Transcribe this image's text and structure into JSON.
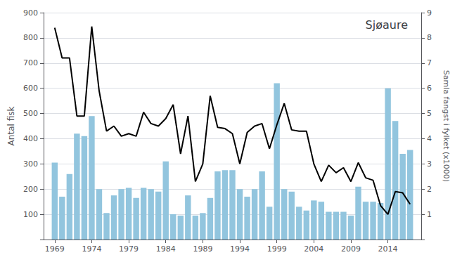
{
  "chart_data": {
    "type": "bar",
    "title": "Sjøaure",
    "ylabel": "Antal fisk",
    "y2label": "Samla fangst i fylket (x1000)",
    "x": [
      1969,
      1970,
      1971,
      1972,
      1973,
      1974,
      1975,
      1976,
      1977,
      1978,
      1979,
      1980,
      1981,
      1982,
      1983,
      1984,
      1985,
      1986,
      1987,
      1988,
      1989,
      1990,
      1991,
      1992,
      1993,
      1994,
      1995,
      1996,
      1997,
      1998,
      1999,
      2000,
      2001,
      2002,
      2003,
      2004,
      2005,
      2006,
      2007,
      2008,
      2009,
      2010,
      2011,
      2012,
      2013,
      2014,
      2015,
      2016,
      2017
    ],
    "series": [
      {
        "type": "bar",
        "color": "#92c5de",
        "values": [
          305,
          170,
          260,
          420,
          410,
          490,
          200,
          105,
          175,
          200,
          205,
          165,
          205,
          200,
          190,
          310,
          100,
          95,
          175,
          95,
          105,
          165,
          270,
          275,
          275,
          200,
          170,
          200,
          270,
          130,
          620,
          200,
          190,
          130,
          115,
          155,
          150,
          110,
          110,
          110,
          95,
          210,
          150,
          150,
          145,
          600,
          470,
          340,
          355
        ]
      },
      {
        "type": "line",
        "color": "#000000",
        "axis": "y2",
        "values": [
          8.4,
          7.2,
          7.2,
          4.9,
          4.9,
          8.45,
          5.9,
          4.3,
          4.5,
          4.1,
          4.2,
          4.1,
          5.05,
          4.6,
          4.5,
          4.8,
          5.35,
          3.4,
          4.9,
          2.3,
          3.0,
          5.7,
          4.45,
          4.4,
          4.2,
          3.0,
          4.25,
          4.5,
          4.6,
          3.6,
          4.55,
          5.4,
          4.35,
          4.3,
          4.3,
          3.0,
          2.3,
          2.95,
          2.65,
          2.85,
          2.3,
          3.05,
          2.45,
          2.35,
          1.35,
          1.0,
          1.9,
          1.85,
          1.4
        ]
      }
    ],
    "xlim": [
      1967.5,
      2018.5
    ],
    "xticks": [
      1969,
      1974,
      1979,
      1984,
      1989,
      1994,
      1999,
      2004,
      2009,
      2014
    ],
    "ylim": [
      0,
      900
    ],
    "yticks": [
      {
        "value": 0,
        "label": ""
      },
      100,
      200,
      300,
      400,
      500,
      600,
      700,
      800,
      900
    ],
    "y2lim": [
      0,
      9
    ],
    "y2ticks": [
      {
        "value": 0,
        "label": ""
      },
      1,
      2,
      3,
      4,
      5,
      6,
      7,
      8,
      9
    ],
    "grid": true
  }
}
